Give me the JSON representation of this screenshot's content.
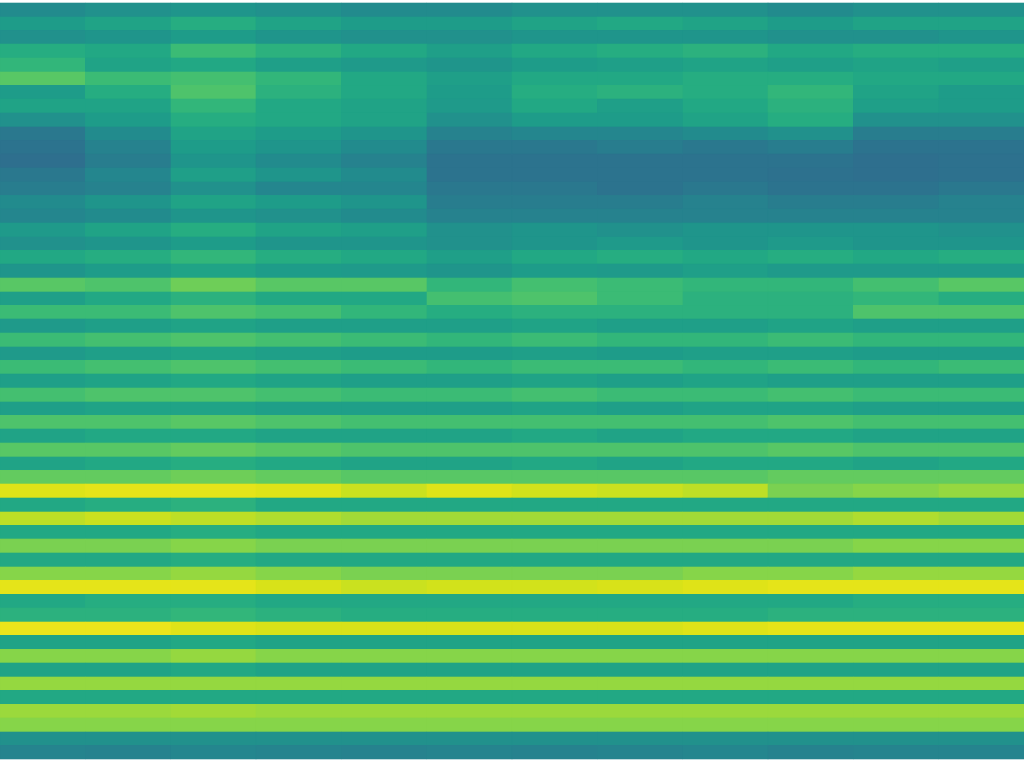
{
  "chart_data": {
    "type": "heatmap",
    "tick_labels": false,
    "color": "viridis",
    "zlim": [
      0,
      1
    ],
    "cells": [
      [
        0.48,
        0.5,
        0.52,
        0.5,
        0.48,
        0.48,
        0.5,
        0.5,
        0.5,
        0.48,
        0.5,
        0.5
      ],
      [
        0.55,
        0.58,
        0.62,
        0.58,
        0.55,
        0.55,
        0.58,
        0.6,
        0.58,
        0.55,
        0.58,
        0.58
      ],
      [
        0.5,
        0.52,
        0.55,
        0.52,
        0.5,
        0.5,
        0.52,
        0.52,
        0.52,
        0.5,
        0.5,
        0.52
      ],
      [
        0.62,
        0.6,
        0.68,
        0.64,
        0.6,
        0.56,
        0.6,
        0.62,
        0.64,
        0.6,
        0.62,
        0.62
      ],
      [
        0.66,
        0.58,
        0.6,
        0.56,
        0.54,
        0.52,
        0.55,
        0.56,
        0.58,
        0.56,
        0.58,
        0.56
      ],
      [
        0.74,
        0.68,
        0.7,
        0.66,
        0.6,
        0.56,
        0.6,
        0.6,
        0.62,
        0.62,
        0.6,
        0.6
      ],
      [
        0.55,
        0.62,
        0.72,
        0.64,
        0.6,
        0.55,
        0.62,
        0.64,
        0.62,
        0.66,
        0.58,
        0.55
      ],
      [
        0.58,
        0.58,
        0.66,
        0.6,
        0.58,
        0.54,
        0.6,
        0.56,
        0.6,
        0.64,
        0.56,
        0.55
      ],
      [
        0.5,
        0.55,
        0.62,
        0.6,
        0.58,
        0.5,
        0.55,
        0.55,
        0.58,
        0.62,
        0.5,
        0.5
      ],
      [
        0.4,
        0.48,
        0.58,
        0.55,
        0.52,
        0.44,
        0.46,
        0.46,
        0.48,
        0.5,
        0.42,
        0.42
      ],
      [
        0.38,
        0.44,
        0.55,
        0.52,
        0.48,
        0.4,
        0.4,
        0.42,
        0.4,
        0.42,
        0.38,
        0.38
      ],
      [
        0.36,
        0.42,
        0.52,
        0.48,
        0.44,
        0.38,
        0.38,
        0.38,
        0.38,
        0.38,
        0.36,
        0.37
      ],
      [
        0.4,
        0.46,
        0.56,
        0.52,
        0.48,
        0.38,
        0.38,
        0.38,
        0.38,
        0.37,
        0.36,
        0.37
      ],
      [
        0.42,
        0.44,
        0.5,
        0.46,
        0.46,
        0.4,
        0.4,
        0.38,
        0.4,
        0.38,
        0.38,
        0.4
      ],
      [
        0.48,
        0.52,
        0.58,
        0.55,
        0.52,
        0.42,
        0.42,
        0.42,
        0.44,
        0.42,
        0.42,
        0.44
      ],
      [
        0.46,
        0.48,
        0.52,
        0.5,
        0.48,
        0.44,
        0.44,
        0.44,
        0.44,
        0.44,
        0.44,
        0.44
      ],
      [
        0.54,
        0.58,
        0.62,
        0.58,
        0.56,
        0.5,
        0.52,
        0.5,
        0.52,
        0.52,
        0.52,
        0.5
      ],
      [
        0.5,
        0.52,
        0.55,
        0.52,
        0.52,
        0.5,
        0.52,
        0.54,
        0.52,
        0.54,
        0.52,
        0.52
      ],
      [
        0.6,
        0.62,
        0.66,
        0.62,
        0.6,
        0.56,
        0.6,
        0.62,
        0.6,
        0.62,
        0.6,
        0.62
      ],
      [
        0.52,
        0.55,
        0.58,
        0.55,
        0.54,
        0.52,
        0.55,
        0.54,
        0.56,
        0.54,
        0.54,
        0.54
      ],
      [
        0.74,
        0.72,
        0.78,
        0.74,
        0.74,
        0.66,
        0.7,
        0.68,
        0.66,
        0.66,
        0.7,
        0.74
      ],
      [
        0.56,
        0.6,
        0.64,
        0.6,
        0.6,
        0.7,
        0.72,
        0.68,
        0.64,
        0.64,
        0.66,
        0.62
      ],
      [
        0.68,
        0.68,
        0.72,
        0.7,
        0.66,
        0.62,
        0.64,
        0.64,
        0.64,
        0.64,
        0.72,
        0.72
      ],
      [
        0.54,
        0.56,
        0.58,
        0.56,
        0.56,
        0.56,
        0.58,
        0.56,
        0.56,
        0.58,
        0.56,
        0.56
      ],
      [
        0.68,
        0.7,
        0.72,
        0.7,
        0.68,
        0.66,
        0.68,
        0.66,
        0.66,
        0.68,
        0.66,
        0.66
      ],
      [
        0.54,
        0.56,
        0.58,
        0.56,
        0.55,
        0.55,
        0.56,
        0.55,
        0.56,
        0.56,
        0.55,
        0.55
      ],
      [
        0.68,
        0.7,
        0.72,
        0.7,
        0.68,
        0.66,
        0.68,
        0.68,
        0.66,
        0.68,
        0.66,
        0.68
      ],
      [
        0.56,
        0.58,
        0.6,
        0.58,
        0.56,
        0.56,
        0.58,
        0.56,
        0.58,
        0.56,
        0.56,
        0.56
      ],
      [
        0.7,
        0.72,
        0.72,
        0.7,
        0.68,
        0.68,
        0.7,
        0.68,
        0.68,
        0.7,
        0.68,
        0.68
      ],
      [
        0.56,
        0.58,
        0.58,
        0.56,
        0.56,
        0.56,
        0.58,
        0.56,
        0.58,
        0.58,
        0.56,
        0.56
      ],
      [
        0.72,
        0.72,
        0.74,
        0.72,
        0.7,
        0.7,
        0.7,
        0.7,
        0.7,
        0.72,
        0.7,
        0.7
      ],
      [
        0.58,
        0.6,
        0.6,
        0.58,
        0.58,
        0.58,
        0.6,
        0.58,
        0.6,
        0.6,
        0.58,
        0.58
      ],
      [
        0.74,
        0.74,
        0.76,
        0.74,
        0.72,
        0.72,
        0.72,
        0.72,
        0.72,
        0.74,
        0.72,
        0.72
      ],
      [
        0.58,
        0.6,
        0.62,
        0.6,
        0.58,
        0.58,
        0.6,
        0.58,
        0.6,
        0.6,
        0.58,
        0.6
      ],
      [
        0.76,
        0.76,
        0.78,
        0.76,
        0.74,
        0.74,
        0.74,
        0.74,
        0.74,
        0.76,
        0.76,
        0.76
      ],
      [
        0.95,
        0.96,
        0.96,
        0.95,
        0.92,
        0.95,
        0.93,
        0.92,
        0.9,
        0.8,
        0.82,
        0.84
      ],
      [
        0.6,
        0.62,
        0.64,
        0.6,
        0.6,
        0.6,
        0.6,
        0.6,
        0.6,
        0.6,
        0.6,
        0.6
      ],
      [
        0.9,
        0.92,
        0.9,
        0.88,
        0.86,
        0.86,
        0.86,
        0.86,
        0.86,
        0.86,
        0.88,
        0.86
      ],
      [
        0.6,
        0.6,
        0.62,
        0.6,
        0.6,
        0.6,
        0.6,
        0.6,
        0.6,
        0.6,
        0.6,
        0.6
      ],
      [
        0.8,
        0.8,
        0.82,
        0.8,
        0.8,
        0.8,
        0.8,
        0.8,
        0.8,
        0.8,
        0.82,
        0.82
      ],
      [
        0.6,
        0.6,
        0.62,
        0.6,
        0.6,
        0.6,
        0.6,
        0.6,
        0.6,
        0.6,
        0.6,
        0.6
      ],
      [
        0.82,
        0.82,
        0.84,
        0.82,
        0.8,
        0.8,
        0.8,
        0.8,
        0.82,
        0.82,
        0.84,
        0.84
      ],
      [
        0.96,
        0.96,
        0.96,
        0.94,
        0.92,
        0.93,
        0.93,
        0.94,
        0.95,
        0.96,
        0.96,
        0.96
      ],
      [
        0.6,
        0.62,
        0.62,
        0.6,
        0.6,
        0.6,
        0.6,
        0.6,
        0.6,
        0.6,
        0.62,
        0.62
      ],
      [
        0.64,
        0.64,
        0.66,
        0.64,
        0.62,
        0.62,
        0.62,
        0.62,
        0.62,
        0.64,
        0.64,
        0.64
      ],
      [
        0.97,
        0.97,
        0.95,
        0.94,
        0.94,
        0.94,
        0.94,
        0.94,
        0.95,
        0.96,
        0.96,
        0.96
      ],
      [
        0.58,
        0.58,
        0.6,
        0.58,
        0.58,
        0.58,
        0.58,
        0.58,
        0.58,
        0.58,
        0.58,
        0.58
      ],
      [
        0.82,
        0.82,
        0.84,
        0.82,
        0.82,
        0.82,
        0.82,
        0.82,
        0.82,
        0.82,
        0.82,
        0.82
      ],
      [
        0.58,
        0.58,
        0.6,
        0.58,
        0.58,
        0.58,
        0.58,
        0.58,
        0.58,
        0.58,
        0.58,
        0.58
      ],
      [
        0.84,
        0.84,
        0.84,
        0.84,
        0.84,
        0.84,
        0.84,
        0.84,
        0.84,
        0.84,
        0.84,
        0.84
      ],
      [
        0.6,
        0.6,
        0.6,
        0.6,
        0.6,
        0.6,
        0.6,
        0.6,
        0.6,
        0.6,
        0.6,
        0.6
      ],
      [
        0.85,
        0.85,
        0.86,
        0.85,
        0.85,
        0.85,
        0.85,
        0.85,
        0.85,
        0.85,
        0.85,
        0.85
      ],
      [
        0.82,
        0.82,
        0.82,
        0.82,
        0.82,
        0.82,
        0.82,
        0.82,
        0.82,
        0.82,
        0.82,
        0.82
      ],
      [
        0.5,
        0.5,
        0.5,
        0.5,
        0.5,
        0.5,
        0.5,
        0.5,
        0.5,
        0.5,
        0.5,
        0.5
      ],
      [
        0.45,
        0.44,
        0.46,
        0.45,
        0.44,
        0.45,
        0.44,
        0.45,
        0.46,
        0.44,
        0.45,
        0.45
      ]
    ]
  }
}
